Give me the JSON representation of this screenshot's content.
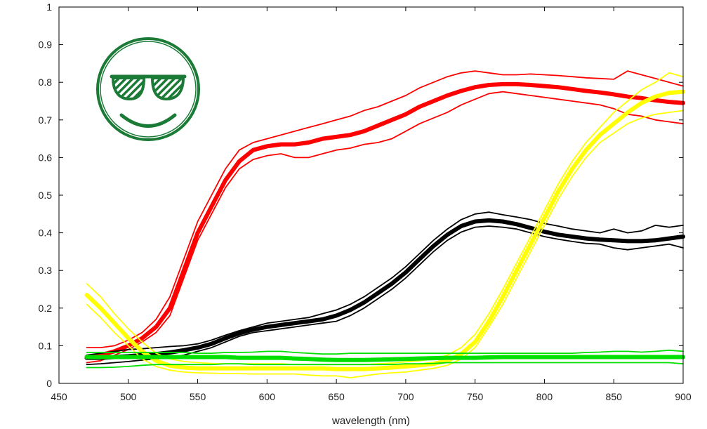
{
  "chart_data": {
    "type": "line",
    "title": "",
    "xlabel": "wavelength (nm)",
    "ylabel": "",
    "xlim": [
      450,
      900
    ],
    "ylim": [
      0,
      1
    ],
    "x_ticks": [
      "450",
      "500",
      "550",
      "600",
      "650",
      "700",
      "750",
      "800",
      "850",
      "900"
    ],
    "y_ticks": [
      "0",
      "0.1",
      "0.2",
      "0.3",
      "0.4",
      "0.5",
      "0.6",
      "0.7",
      "0.8",
      "0.9",
      "1"
    ],
    "grid": false,
    "legend": "none",
    "icon": "sunglasses-smiley-icon",
    "icon_color": "#1f8a3c",
    "series": [
      {
        "color": "#ff0000",
        "x": [
          470,
          480,
          490,
          500,
          510,
          520,
          530,
          540,
          550,
          560,
          570,
          580,
          590,
          600,
          610,
          620,
          630,
          640,
          650,
          660,
          670,
          680,
          690,
          700,
          710,
          720,
          730,
          740,
          750,
          760,
          770,
          780,
          790,
          800,
          810,
          820,
          830,
          840,
          850,
          860,
          870,
          880,
          890,
          900
        ],
        "mean": [
          0.07,
          0.075,
          0.085,
          0.1,
          0.12,
          0.15,
          0.2,
          0.3,
          0.4,
          0.47,
          0.54,
          0.59,
          0.62,
          0.63,
          0.635,
          0.635,
          0.64,
          0.65,
          0.655,
          0.66,
          0.67,
          0.685,
          0.7,
          0.715,
          0.735,
          0.75,
          0.765,
          0.777,
          0.787,
          0.793,
          0.795,
          0.795,
          0.793,
          0.79,
          0.787,
          0.782,
          0.777,
          0.773,
          0.768,
          0.762,
          0.758,
          0.752,
          0.748,
          0.745
        ],
        "upper": [
          0.095,
          0.095,
          0.1,
          0.115,
          0.135,
          0.17,
          0.23,
          0.33,
          0.43,
          0.5,
          0.57,
          0.62,
          0.64,
          0.65,
          0.66,
          0.67,
          0.68,
          0.69,
          0.7,
          0.71,
          0.725,
          0.735,
          0.75,
          0.765,
          0.785,
          0.8,
          0.815,
          0.825,
          0.83,
          0.825,
          0.82,
          0.82,
          0.822,
          0.82,
          0.818,
          0.815,
          0.812,
          0.81,
          0.808,
          0.83,
          0.82,
          0.81,
          0.8,
          0.79
        ],
        "lower": [
          0.055,
          0.06,
          0.075,
          0.09,
          0.11,
          0.135,
          0.18,
          0.28,
          0.38,
          0.45,
          0.52,
          0.57,
          0.595,
          0.605,
          0.61,
          0.6,
          0.6,
          0.61,
          0.62,
          0.625,
          0.635,
          0.64,
          0.65,
          0.67,
          0.69,
          0.705,
          0.72,
          0.74,
          0.755,
          0.77,
          0.775,
          0.77,
          0.765,
          0.76,
          0.755,
          0.75,
          0.745,
          0.74,
          0.73,
          0.715,
          0.71,
          0.7,
          0.695,
          0.69
        ]
      },
      {
        "color": "#000000",
        "x": [
          470,
          480,
          490,
          500,
          510,
          520,
          530,
          540,
          550,
          560,
          570,
          580,
          590,
          600,
          610,
          620,
          630,
          640,
          650,
          660,
          670,
          680,
          690,
          700,
          710,
          720,
          730,
          740,
          750,
          760,
          770,
          780,
          790,
          800,
          810,
          820,
          830,
          840,
          850,
          860,
          870,
          880,
          890,
          900
        ],
        "mean": [
          0.068,
          0.068,
          0.07,
          0.072,
          0.075,
          0.078,
          0.082,
          0.088,
          0.095,
          0.105,
          0.12,
          0.133,
          0.143,
          0.15,
          0.155,
          0.16,
          0.165,
          0.17,
          0.18,
          0.195,
          0.215,
          0.24,
          0.265,
          0.295,
          0.33,
          0.365,
          0.395,
          0.418,
          0.43,
          0.433,
          0.43,
          0.423,
          0.413,
          0.403,
          0.395,
          0.39,
          0.385,
          0.382,
          0.38,
          0.378,
          0.378,
          0.38,
          0.385,
          0.39
        ],
        "upper": [
          0.075,
          0.08,
          0.085,
          0.09,
          0.092,
          0.095,
          0.098,
          0.1,
          0.105,
          0.115,
          0.128,
          0.14,
          0.15,
          0.16,
          0.165,
          0.17,
          0.175,
          0.185,
          0.195,
          0.21,
          0.23,
          0.255,
          0.28,
          0.31,
          0.345,
          0.38,
          0.41,
          0.435,
          0.45,
          0.455,
          0.448,
          0.442,
          0.435,
          0.425,
          0.418,
          0.41,
          0.405,
          0.4,
          0.41,
          0.4,
          0.405,
          0.42,
          0.415,
          0.42
        ],
        "lower": [
          0.05,
          0.052,
          0.055,
          0.058,
          0.062,
          0.065,
          0.07,
          0.075,
          0.085,
          0.095,
          0.11,
          0.125,
          0.135,
          0.14,
          0.145,
          0.15,
          0.155,
          0.16,
          0.165,
          0.18,
          0.2,
          0.225,
          0.25,
          0.28,
          0.315,
          0.35,
          0.38,
          0.402,
          0.415,
          0.418,
          0.415,
          0.41,
          0.4,
          0.39,
          0.383,
          0.377,
          0.372,
          0.37,
          0.36,
          0.355,
          0.36,
          0.365,
          0.37,
          0.36
        ]
      },
      {
        "color": "#ffff00",
        "x": [
          470,
          480,
          490,
          500,
          510,
          520,
          530,
          540,
          550,
          560,
          570,
          580,
          590,
          600,
          610,
          620,
          630,
          640,
          650,
          660,
          670,
          680,
          690,
          700,
          710,
          720,
          730,
          740,
          750,
          760,
          770,
          780,
          790,
          800,
          810,
          820,
          830,
          840,
          850,
          860,
          870,
          880,
          890,
          900
        ],
        "mean": [
          0.235,
          0.2,
          0.16,
          0.12,
          0.085,
          0.06,
          0.047,
          0.042,
          0.04,
          0.04,
          0.04,
          0.04,
          0.04,
          0.04,
          0.04,
          0.04,
          0.04,
          0.04,
          0.038,
          0.038,
          0.038,
          0.04,
          0.042,
          0.045,
          0.048,
          0.052,
          0.06,
          0.078,
          0.11,
          0.165,
          0.23,
          0.3,
          0.37,
          0.44,
          0.51,
          0.57,
          0.62,
          0.66,
          0.69,
          0.72,
          0.745,
          0.762,
          0.772,
          0.775
        ],
        "upper": [
          0.265,
          0.23,
          0.185,
          0.145,
          0.11,
          0.08,
          0.065,
          0.058,
          0.055,
          0.053,
          0.052,
          0.052,
          0.052,
          0.052,
          0.052,
          0.05,
          0.05,
          0.05,
          0.05,
          0.05,
          0.05,
          0.052,
          0.054,
          0.057,
          0.06,
          0.065,
          0.075,
          0.095,
          0.13,
          0.185,
          0.25,
          0.32,
          0.39,
          0.46,
          0.53,
          0.59,
          0.64,
          0.68,
          0.72,
          0.75,
          0.78,
          0.8,
          0.825,
          0.815
        ],
        "lower": [
          0.21,
          0.175,
          0.135,
          0.1,
          0.065,
          0.045,
          0.035,
          0.03,
          0.028,
          0.027,
          0.026,
          0.026,
          0.025,
          0.025,
          0.025,
          0.025,
          0.022,
          0.02,
          0.02,
          0.015,
          0.02,
          0.025,
          0.028,
          0.03,
          0.035,
          0.04,
          0.048,
          0.065,
          0.095,
          0.15,
          0.21,
          0.28,
          0.35,
          0.42,
          0.49,
          0.55,
          0.6,
          0.64,
          0.665,
          0.69,
          0.705,
          0.715,
          0.72,
          0.725
        ]
      },
      {
        "color": "#00e000",
        "x": [
          470,
          480,
          490,
          500,
          510,
          520,
          530,
          540,
          550,
          560,
          570,
          580,
          590,
          600,
          610,
          620,
          630,
          640,
          650,
          660,
          670,
          680,
          690,
          700,
          710,
          720,
          730,
          740,
          750,
          760,
          770,
          780,
          790,
          800,
          810,
          820,
          830,
          840,
          850,
          860,
          870,
          880,
          890,
          900
        ],
        "mean": [
          0.07,
          0.07,
          0.07,
          0.07,
          0.07,
          0.07,
          0.07,
          0.07,
          0.07,
          0.07,
          0.07,
          0.068,
          0.068,
          0.068,
          0.068,
          0.066,
          0.065,
          0.063,
          0.062,
          0.062,
          0.062,
          0.063,
          0.064,
          0.065,
          0.066,
          0.067,
          0.068,
          0.068,
          0.068,
          0.069,
          0.07,
          0.07,
          0.07,
          0.07,
          0.07,
          0.07,
          0.07,
          0.07,
          0.07,
          0.07,
          0.07,
          0.07,
          0.07,
          0.07
        ],
        "upper": [
          0.082,
          0.082,
          0.082,
          0.082,
          0.082,
          0.082,
          0.082,
          0.082,
          0.08,
          0.08,
          0.082,
          0.082,
          0.083,
          0.085,
          0.085,
          0.082,
          0.08,
          0.078,
          0.078,
          0.08,
          0.08,
          0.08,
          0.08,
          0.08,
          0.08,
          0.08,
          0.08,
          0.08,
          0.08,
          0.08,
          0.08,
          0.08,
          0.08,
          0.08,
          0.08,
          0.08,
          0.082,
          0.083,
          0.085,
          0.085,
          0.083,
          0.085,
          0.088,
          0.085
        ],
        "lower": [
          0.042,
          0.042,
          0.043,
          0.045,
          0.048,
          0.05,
          0.05,
          0.05,
          0.05,
          0.05,
          0.052,
          0.052,
          0.05,
          0.05,
          0.05,
          0.05,
          0.05,
          0.05,
          0.05,
          0.05,
          0.05,
          0.05,
          0.05,
          0.052,
          0.052,
          0.053,
          0.055,
          0.055,
          0.055,
          0.055,
          0.055,
          0.055,
          0.055,
          0.055,
          0.055,
          0.055,
          0.055,
          0.055,
          0.055,
          0.055,
          0.055,
          0.055,
          0.055,
          0.052
        ]
      }
    ]
  }
}
